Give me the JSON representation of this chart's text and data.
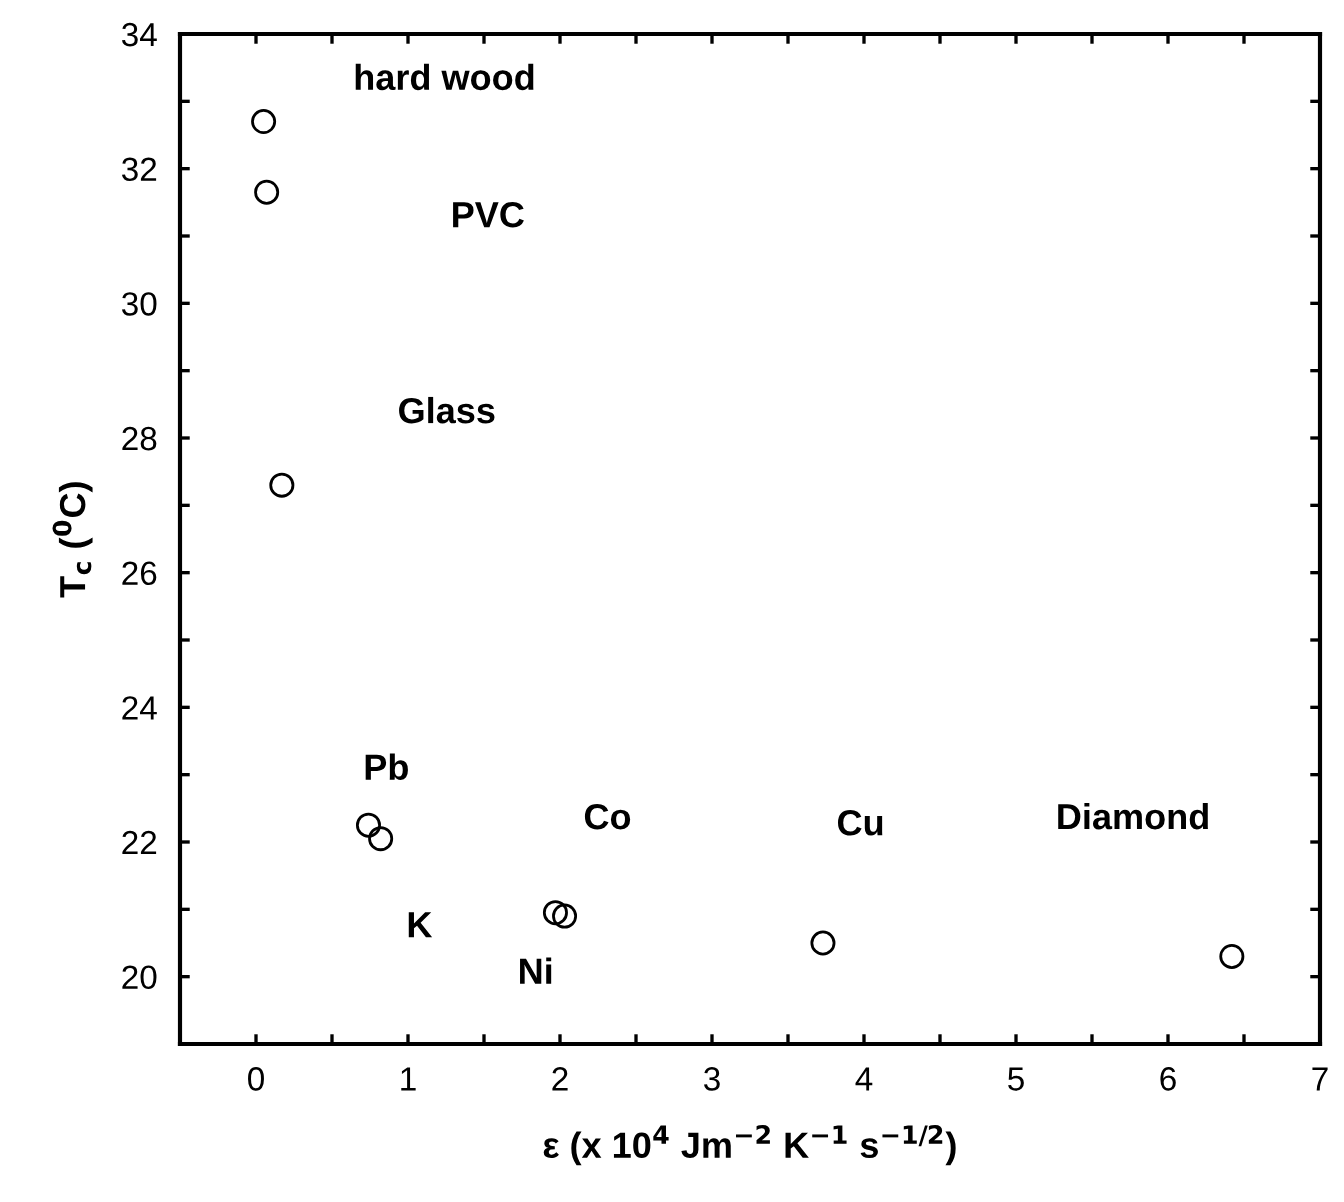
{
  "chart_data": {
    "type": "scatter",
    "xlabel": "ε (x 10$^{4}$ Jm$^{−2}$ K$^{−1}$ s$^{−1/2}$)",
    "ylabel": "T$_{c}$ ($^{0}$C)",
    "x": [
      0.05,
      0.07,
      0.17,
      0.74,
      0.82,
      1.97,
      2.03,
      3.73,
      6.42
    ],
    "series": [
      {
        "color": "#000000",
        "values": [
          32.7,
          31.65,
          27.3,
          22.25,
          22.05,
          20.95,
          20.9,
          20.5,
          20.3
        ]
      }
    ],
    "marker": "circle",
    "xlim": [
      -0.5,
      7
    ],
    "ylim": [
      19,
      34
    ],
    "xticks": [
      {
        "value": -0.5,
        "label": null
      },
      0,
      {
        "value": 0.5,
        "label": null
      },
      1,
      {
        "value": 1.5,
        "label": null
      },
      2,
      {
        "value": 2.5,
        "label": null
      },
      3,
      {
        "value": 3.5,
        "label": null
      },
      4,
      {
        "value": 4.5,
        "label": null
      },
      5,
      {
        "value": 5.5,
        "label": null
      },
      6,
      {
        "value": 6.5,
        "label": null
      },
      7
    ],
    "yticks": [
      {
        "value": 19,
        "label": null
      },
      20,
      {
        "value": 21,
        "label": null
      },
      22,
      {
        "value": 23,
        "label": null
      },
      24,
      {
        "value": 25,
        "label": null
      },
      26,
      {
        "value": 27,
        "label": null
      },
      28,
      {
        "value": 29,
        "label": null
      },
      30,
      {
        "value": 31,
        "label": null
      },
      32,
      {
        "value": 33,
        "label": null
      },
      34
    ],
    "grid": false,
    "legend": false,
    "annotations": [
      "hard wood",
      "PVC",
      "Glass",
      "Pb",
      "K",
      "Ni",
      "Co",
      "Cu",
      "Diamond"
    ]
  }
}
